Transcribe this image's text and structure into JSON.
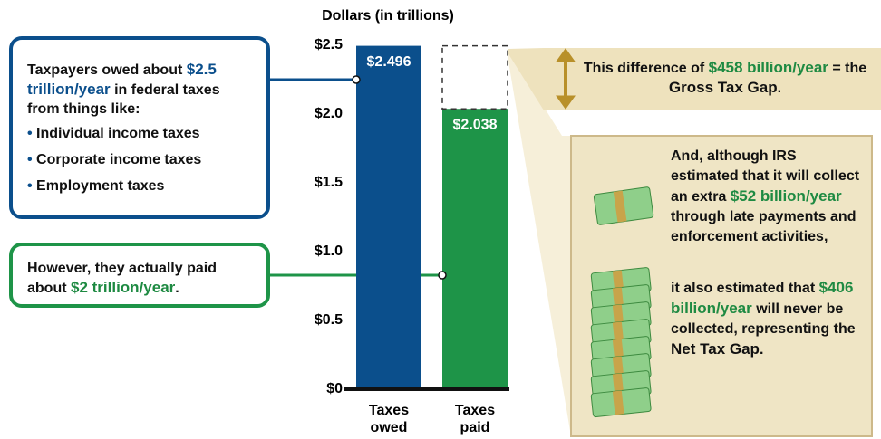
{
  "chart_data": {
    "type": "bar",
    "y_axis_label": "Dollars (in trillions)",
    "categories": [
      "Taxes owed",
      "Taxes paid"
    ],
    "values": [
      2.496,
      2.038
    ],
    "value_labels": [
      "$2.496",
      "$2.038"
    ],
    "colors": [
      "#0b4f8c",
      "#1e9448"
    ],
    "ylim": [
      0,
      2.5
    ],
    "yticks": [
      {
        "value": 0,
        "label": "$0"
      },
      {
        "value": 0.5,
        "label": "$0.5"
      },
      {
        "value": 1,
        "label": "$1.0"
      },
      {
        "value": 1.5,
        "label": "$1.5"
      },
      {
        "value": 2,
        "label": "$2.0"
      },
      {
        "value": 2.5,
        "label": "$2.5"
      }
    ]
  },
  "annotations": {
    "owed_box": {
      "text": [
        "Taxpayers owed about ",
        "$2.5 trillion/year",
        " in federal taxes from things like:"
      ],
      "bullets": [
        "Individual income taxes",
        "Corporate income taxes",
        "Employment taxes"
      ]
    },
    "paid_box": {
      "text": [
        "However, they actually paid about ",
        "$2 trillion/year",
        "."
      ]
    },
    "gross_gap": {
      "text": [
        "This difference of ",
        "$458 billion/year",
        " = the ",
        "Gross Tax Gap",
        "."
      ]
    },
    "net_gap": {
      "text1": [
        "And, although IRS estimated that it will collect an extra ",
        "$52 billion/year",
        " through late payments and enforcement activities,"
      ],
      "text2": [
        "it also estimated that ",
        "$406 billion/year",
        " will never be collected, representing the ",
        "Net Tax Gap",
        "."
      ]
    }
  }
}
